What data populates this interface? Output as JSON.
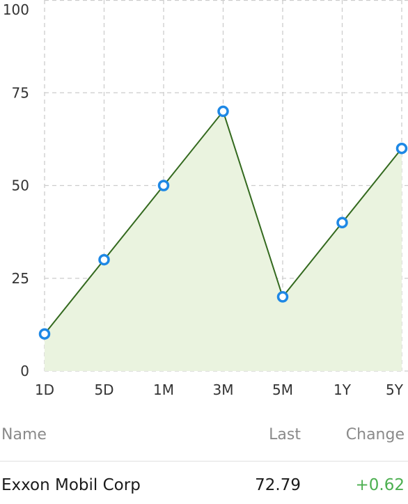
{
  "chart_data": {
    "type": "area",
    "categories": [
      "1D",
      "5D",
      "1M",
      "3M",
      "5M",
      "1Y",
      "5Y"
    ],
    "series": [
      {
        "values": [
          10,
          30,
          50,
          70,
          20,
          40,
          60
        ]
      }
    ],
    "xlabel": "",
    "ylabel": "",
    "ylim": [
      0,
      100
    ],
    "yticks": [
      0,
      25,
      50,
      75,
      100
    ],
    "grid": true,
    "colors": {
      "line": "#33691e",
      "fill": "#eaf3df",
      "marker_stroke": "#1e88e5",
      "marker_fill": "#ffffff",
      "grid": "#cccccc"
    }
  },
  "table": {
    "headers": {
      "name": "Name",
      "last": "Last",
      "change": "Change"
    },
    "rows": [
      {
        "name": "Exxon Mobil Corp",
        "last": "72.79",
        "change": "+0.62"
      }
    ],
    "change_color": "#4caf50"
  }
}
